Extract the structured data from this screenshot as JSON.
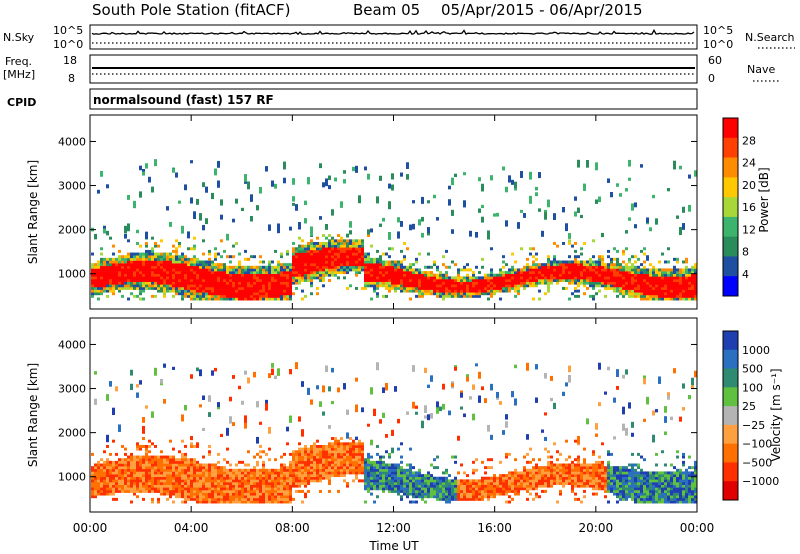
{
  "header": {
    "station": "South Pole Station (fitACF)",
    "beam": "Beam 05",
    "date_range": "05/Apr/2015 - 06/Apr/2015"
  },
  "top_strip": {
    "nsky_label": "N.Sky",
    "nsearch_label": "N.Search",
    "nsky_ticks": [
      "10^5",
      "10^0"
    ],
    "nsearch_ticks": [
      "10^5",
      "10^0"
    ],
    "freq_label_1": "Freq.",
    "freq_label_2": "[MHz]",
    "freq_ticks": [
      "18",
      "8"
    ],
    "nave_label": "Nave",
    "nave_ticks": [
      "60",
      "0"
    ],
    "cpid_label": "CPID",
    "cpid_value": "normalsound (fast) 157 RF"
  },
  "chart_data": [
    {
      "type": "heatmap",
      "name": "power-panel",
      "ylabel": "Slant Range [km]",
      "xlabel": "",
      "yticks": [
        "1000",
        "2000",
        "3000",
        "4000"
      ],
      "ylim": [
        200,
        4600
      ],
      "colorbar_label": "Power [dB]",
      "colorbar_ticks": [
        "28",
        "24",
        "20",
        "16",
        "12",
        "8",
        "4"
      ],
      "colorbar_colors": [
        "#ff0000",
        "#ff4000",
        "#ff8c00",
        "#ffc800",
        "#a8d838",
        "#3cb46e",
        "#2a8c5a",
        "#1f4fa0",
        "#0000ff"
      ]
    },
    {
      "type": "heatmap",
      "name": "velocity-panel",
      "ylabel": "Slant Range [km]",
      "xlabel": "Time UT",
      "yticks": [
        "1000",
        "2000",
        "3000",
        "4000"
      ],
      "ylim": [
        200,
        4600
      ],
      "xticks": [
        "00:00",
        "04:00",
        "08:00",
        "12:00",
        "16:00",
        "20:00",
        "00:00"
      ],
      "colorbar_label": "Velocity [m s⁻¹]",
      "colorbar_ticks": [
        "1000",
        "500",
        "100",
        "25",
        "−25",
        "−100",
        "−500",
        "−1000"
      ],
      "colorbar_colors": [
        "#1f3fb0",
        "#2a6fc0",
        "#2e8a70",
        "#60c040",
        "#b4b4b4",
        "#ffa040",
        "#ff7000",
        "#ff3000",
        "#e00000"
      ]
    }
  ]
}
